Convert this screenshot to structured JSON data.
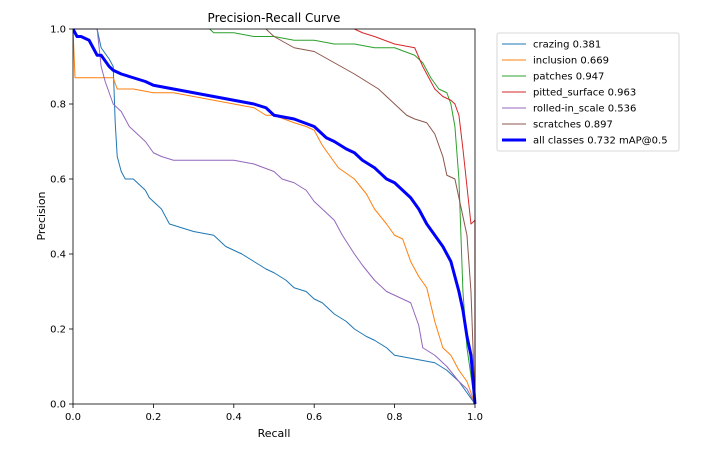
{
  "chart_data": {
    "type": "line",
    "title": "Precision-Recall Curve",
    "xlabel": "Recall",
    "ylabel": "Precision",
    "xlim": [
      0,
      1
    ],
    "ylim": [
      0,
      1
    ],
    "x_ticks": [
      "0.0",
      "0.2",
      "0.4",
      "0.6",
      "0.8",
      "1.0"
    ],
    "y_ticks": [
      "0.0",
      "0.2",
      "0.4",
      "0.6",
      "0.8",
      "1.0"
    ],
    "grid": false,
    "legend_position": "outside-top-right",
    "series": [
      {
        "name": "crazing 0.381",
        "color": "#1f77b4",
        "width": 1,
        "points": [
          [
            0,
            1
          ],
          [
            0.06,
            1
          ],
          [
            0.07,
            0.95
          ],
          [
            0.09,
            0.92
          ],
          [
            0.1,
            0.9
          ],
          [
            0.105,
            0.75
          ],
          [
            0.11,
            0.66
          ],
          [
            0.12,
            0.62
          ],
          [
            0.13,
            0.6
          ],
          [
            0.15,
            0.6
          ],
          [
            0.18,
            0.57
          ],
          [
            0.19,
            0.55
          ],
          [
            0.2,
            0.54
          ],
          [
            0.22,
            0.52
          ],
          [
            0.24,
            0.48
          ],
          [
            0.27,
            0.47
          ],
          [
            0.3,
            0.46
          ],
          [
            0.35,
            0.45
          ],
          [
            0.38,
            0.42
          ],
          [
            0.42,
            0.4
          ],
          [
            0.45,
            0.38
          ],
          [
            0.48,
            0.36
          ],
          [
            0.5,
            0.35
          ],
          [
            0.53,
            0.33
          ],
          [
            0.55,
            0.31
          ],
          [
            0.58,
            0.3
          ],
          [
            0.6,
            0.28
          ],
          [
            0.62,
            0.27
          ],
          [
            0.65,
            0.24
          ],
          [
            0.68,
            0.22
          ],
          [
            0.7,
            0.2
          ],
          [
            0.73,
            0.18
          ],
          [
            0.75,
            0.17
          ],
          [
            0.78,
            0.15
          ],
          [
            0.8,
            0.13
          ],
          [
            0.85,
            0.12
          ],
          [
            0.9,
            0.11
          ],
          [
            0.93,
            0.09
          ],
          [
            0.96,
            0.06
          ],
          [
            0.98,
            0.03
          ],
          [
            1.0,
            0.0
          ]
        ]
      },
      {
        "name": "inclusion 0.669",
        "color": "#ff7f0e",
        "width": 1,
        "points": [
          [
            0,
            1
          ],
          [
            0.005,
            0.87
          ],
          [
            0.1,
            0.87
          ],
          [
            0.11,
            0.84
          ],
          [
            0.15,
            0.84
          ],
          [
            0.2,
            0.83
          ],
          [
            0.25,
            0.83
          ],
          [
            0.3,
            0.82
          ],
          [
            0.35,
            0.81
          ],
          [
            0.4,
            0.8
          ],
          [
            0.45,
            0.79
          ],
          [
            0.48,
            0.77
          ],
          [
            0.5,
            0.77
          ],
          [
            0.55,
            0.75
          ],
          [
            0.58,
            0.74
          ],
          [
            0.6,
            0.73
          ],
          [
            0.62,
            0.69
          ],
          [
            0.64,
            0.66
          ],
          [
            0.66,
            0.63
          ],
          [
            0.7,
            0.6
          ],
          [
            0.73,
            0.56
          ],
          [
            0.75,
            0.52
          ],
          [
            0.78,
            0.48
          ],
          [
            0.8,
            0.45
          ],
          [
            0.82,
            0.44
          ],
          [
            0.84,
            0.38
          ],
          [
            0.86,
            0.34
          ],
          [
            0.88,
            0.31
          ],
          [
            0.9,
            0.22
          ],
          [
            0.92,
            0.15
          ],
          [
            0.94,
            0.13
          ],
          [
            0.96,
            0.09
          ],
          [
            0.98,
            0.06
          ],
          [
            1.0,
            0.0
          ]
        ]
      },
      {
        "name": "patches 0.947",
        "color": "#2ca02c",
        "width": 1,
        "points": [
          [
            0.34,
            1
          ],
          [
            0.35,
            0.99
          ],
          [
            0.4,
            0.99
          ],
          [
            0.45,
            0.98
          ],
          [
            0.5,
            0.98
          ],
          [
            0.55,
            0.97
          ],
          [
            0.6,
            0.97
          ],
          [
            0.65,
            0.96
          ],
          [
            0.7,
            0.96
          ],
          [
            0.75,
            0.95
          ],
          [
            0.8,
            0.95
          ],
          [
            0.85,
            0.93
          ],
          [
            0.87,
            0.91
          ],
          [
            0.89,
            0.87
          ],
          [
            0.91,
            0.84
          ],
          [
            0.93,
            0.83
          ],
          [
            0.94,
            0.8
          ],
          [
            0.95,
            0.74
          ],
          [
            0.96,
            0.6
          ],
          [
            0.97,
            0.3
          ],
          [
            0.98,
            0.15
          ],
          [
            1.0,
            0.0
          ]
        ]
      },
      {
        "name": "pitted_surface 0.963",
        "color": "#d62728",
        "width": 1,
        "points": [
          [
            0.7,
            1
          ],
          [
            0.72,
            0.99
          ],
          [
            0.75,
            0.98
          ],
          [
            0.8,
            0.96
          ],
          [
            0.85,
            0.95
          ],
          [
            0.87,
            0.9
          ],
          [
            0.88,
            0.88
          ],
          [
            0.9,
            0.84
          ],
          [
            0.92,
            0.82
          ],
          [
            0.94,
            0.81
          ],
          [
            0.95,
            0.8
          ],
          [
            0.96,
            0.77
          ],
          [
            0.97,
            0.68
          ],
          [
            0.98,
            0.58
          ],
          [
            0.99,
            0.48
          ],
          [
            1.0,
            0.49
          ],
          [
            1.0,
            0.0
          ]
        ]
      },
      {
        "name": "rolled-in_scale 0.536",
        "color": "#9467bd",
        "width": 1,
        "points": [
          [
            0,
            1
          ],
          [
            0.06,
            1
          ],
          [
            0.07,
            0.9
          ],
          [
            0.08,
            0.86
          ],
          [
            0.1,
            0.8
          ],
          [
            0.12,
            0.78
          ],
          [
            0.14,
            0.74
          ],
          [
            0.16,
            0.72
          ],
          [
            0.18,
            0.7
          ],
          [
            0.2,
            0.67
          ],
          [
            0.22,
            0.66
          ],
          [
            0.25,
            0.65
          ],
          [
            0.3,
            0.65
          ],
          [
            0.4,
            0.65
          ],
          [
            0.45,
            0.64
          ],
          [
            0.5,
            0.62
          ],
          [
            0.52,
            0.6
          ],
          [
            0.55,
            0.59
          ],
          [
            0.58,
            0.57
          ],
          [
            0.6,
            0.54
          ],
          [
            0.62,
            0.52
          ],
          [
            0.65,
            0.49
          ],
          [
            0.67,
            0.45
          ],
          [
            0.7,
            0.4
          ],
          [
            0.72,
            0.37
          ],
          [
            0.75,
            0.33
          ],
          [
            0.78,
            0.3
          ],
          [
            0.8,
            0.29
          ],
          [
            0.82,
            0.28
          ],
          [
            0.84,
            0.27
          ],
          [
            0.86,
            0.21
          ],
          [
            0.87,
            0.15
          ],
          [
            0.9,
            0.13
          ],
          [
            0.93,
            0.1
          ],
          [
            0.96,
            0.06
          ],
          [
            0.98,
            0.04
          ],
          [
            1.0,
            0.0
          ]
        ]
      },
      {
        "name": "scratches 0.897",
        "color": "#8c564b",
        "width": 1,
        "points": [
          [
            0.48,
            1
          ],
          [
            0.5,
            0.98
          ],
          [
            0.55,
            0.95
          ],
          [
            0.6,
            0.94
          ],
          [
            0.65,
            0.91
          ],
          [
            0.7,
            0.88
          ],
          [
            0.73,
            0.86
          ],
          [
            0.76,
            0.84
          ],
          [
            0.8,
            0.8
          ],
          [
            0.83,
            0.77
          ],
          [
            0.85,
            0.76
          ],
          [
            0.88,
            0.75
          ],
          [
            0.9,
            0.72
          ],
          [
            0.92,
            0.66
          ],
          [
            0.93,
            0.61
          ],
          [
            0.95,
            0.6
          ],
          [
            0.96,
            0.55
          ],
          [
            0.97,
            0.5
          ],
          [
            0.98,
            0.45
          ],
          [
            0.99,
            0.3
          ],
          [
            1.0,
            0.0
          ]
        ]
      },
      {
        "name": "all classes 0.732 mAP@0.5",
        "color": "#0000ff",
        "width": 3,
        "points": [
          [
            0,
            1
          ],
          [
            0.005,
            0.99
          ],
          [
            0.01,
            0.98
          ],
          [
            0.02,
            0.98
          ],
          [
            0.04,
            0.97
          ],
          [
            0.05,
            0.95
          ],
          [
            0.06,
            0.93
          ],
          [
            0.07,
            0.93
          ],
          [
            0.09,
            0.9
          ],
          [
            0.1,
            0.89
          ],
          [
            0.12,
            0.88
          ],
          [
            0.15,
            0.87
          ],
          [
            0.18,
            0.86
          ],
          [
            0.2,
            0.85
          ],
          [
            0.25,
            0.84
          ],
          [
            0.3,
            0.83
          ],
          [
            0.35,
            0.82
          ],
          [
            0.4,
            0.81
          ],
          [
            0.45,
            0.8
          ],
          [
            0.48,
            0.79
          ],
          [
            0.5,
            0.77
          ],
          [
            0.55,
            0.76
          ],
          [
            0.6,
            0.74
          ],
          [
            0.63,
            0.71
          ],
          [
            0.65,
            0.7
          ],
          [
            0.68,
            0.68
          ],
          [
            0.7,
            0.67
          ],
          [
            0.72,
            0.65
          ],
          [
            0.75,
            0.63
          ],
          [
            0.78,
            0.6
          ],
          [
            0.8,
            0.59
          ],
          [
            0.82,
            0.57
          ],
          [
            0.84,
            0.55
          ],
          [
            0.86,
            0.52
          ],
          [
            0.88,
            0.48
          ],
          [
            0.9,
            0.45
          ],
          [
            0.92,
            0.42
          ],
          [
            0.94,
            0.38
          ],
          [
            0.95,
            0.34
          ],
          [
            0.96,
            0.3
          ],
          [
            0.97,
            0.25
          ],
          [
            0.98,
            0.18
          ],
          [
            0.99,
            0.13
          ],
          [
            1.0,
            0.0
          ]
        ]
      }
    ]
  }
}
